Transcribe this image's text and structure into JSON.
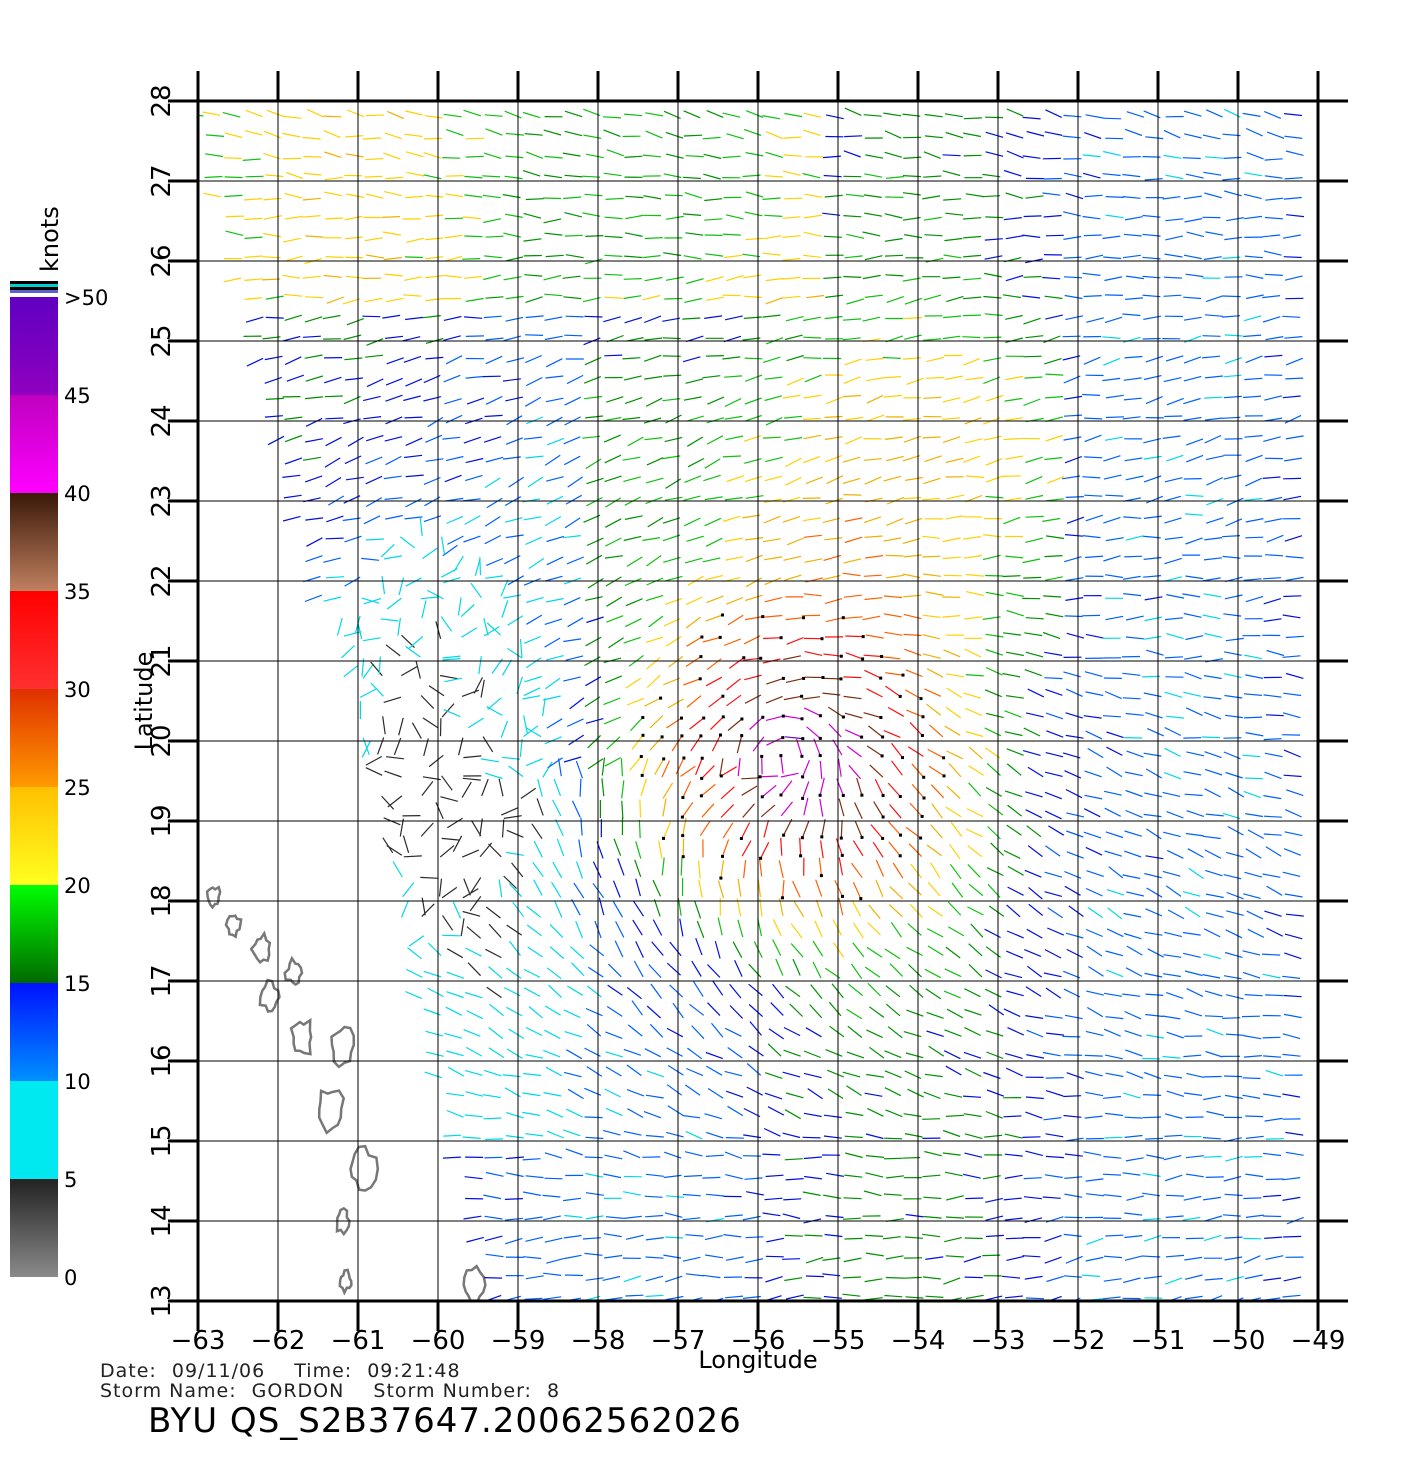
{
  "legend": {
    "unit": "knots",
    "labels": [
      ">50",
      "45",
      "40",
      "35",
      "30",
      "25",
      "20",
      "15",
      "10",
      "5",
      "0"
    ],
    "bands": [
      {
        "from": 0,
        "to": 5,
        "color_top": "#222222",
        "color_bottom": "#8a8a8a"
      },
      {
        "from": 5,
        "to": 10,
        "color_top": "#00e8f0",
        "color_bottom": "#00e8f0"
      },
      {
        "from": 10,
        "to": 15,
        "color_top": "#0010ff",
        "color_bottom": "#0090ff"
      },
      {
        "from": 15,
        "to": 20,
        "color_top": "#00ff00",
        "color_bottom": "#006a00"
      },
      {
        "from": 20,
        "to": 25,
        "color_top": "#ffc000",
        "color_bottom": "#ffff20"
      },
      {
        "from": 25,
        "to": 30,
        "color_top": "#e03000",
        "color_bottom": "#ff9a00"
      },
      {
        "from": 30,
        "to": 35,
        "color_top": "#ff0000",
        "color_bottom": "#ff3030"
      },
      {
        "from": 35,
        "to": 40,
        "color_top": "#3a1808",
        "color_bottom": "#c08060"
      },
      {
        "from": 40,
        "to": 45,
        "color_top": "#c000c0",
        "color_bottom": "#ff00ff"
      },
      {
        "from": 45,
        "to": 50,
        "color_top": "#6000c0",
        "color_bottom": "#9000c0"
      }
    ]
  },
  "axes": {
    "xlabel": "Longitude",
    "ylabel": "Latitude",
    "xlim": [
      -63,
      -49
    ],
    "ylim": [
      13,
      28
    ],
    "xticks": [
      -63,
      -62,
      -61,
      -60,
      -59,
      -58,
      -57,
      -56,
      -55,
      -54,
      -53,
      -52,
      -51,
      -50,
      -49
    ],
    "yticks": [
      13,
      14,
      15,
      16,
      17,
      18,
      19,
      20,
      21,
      22,
      23,
      24,
      25,
      26,
      27,
      28
    ],
    "xtick_labels": [
      "−63",
      "−62",
      "−61",
      "−60",
      "−59",
      "−58",
      "−57",
      "−56",
      "−55",
      "−54",
      "−53",
      "−52",
      "−51",
      "−50",
      "−49"
    ],
    "ytick_labels": [
      "13",
      "14",
      "15",
      "16",
      "17",
      "18",
      "19",
      "20",
      "21",
      "22",
      "23",
      "24",
      "25",
      "26",
      "27",
      "28"
    ],
    "grid": true
  },
  "info": {
    "date_label": "Date:",
    "date": "09/11/06",
    "time_label": "Time:",
    "time": "09:21:48",
    "storm_name_label": "Storm Name:",
    "storm_name": "GORDON",
    "storm_number_label": "Storm Number:",
    "storm_number": "8",
    "product_title": "BYU QS_S2B37647.20062562026"
  },
  "wind_field": {
    "storm_center": {
      "lon": -55.6,
      "lat": 19.8
    },
    "swath_western_edge_lon_at_lat13": -59.3,
    "swath_western_edge_lon_at_lat28": -63
  },
  "islands": [
    {
      "lon": -62.1,
      "lat": 16.8
    },
    {
      "lon": -61.8,
      "lat": 17.1
    },
    {
      "lon": -61.7,
      "lat": 16.3
    },
    {
      "lon": -61.2,
      "lat": 16.2
    },
    {
      "lon": -61.35,
      "lat": 15.4
    },
    {
      "lon": -60.95,
      "lat": 14.65
    },
    {
      "lon": -61.15,
      "lat": 13.25
    },
    {
      "lon": -61.2,
      "lat": 14.0
    },
    {
      "lon": -62.2,
      "lat": 17.4
    },
    {
      "lon": -62.55,
      "lat": 17.7
    },
    {
      "lon": -62.8,
      "lat": 18.05
    },
    {
      "lon": -59.55,
      "lat": 13.2
    }
  ]
}
